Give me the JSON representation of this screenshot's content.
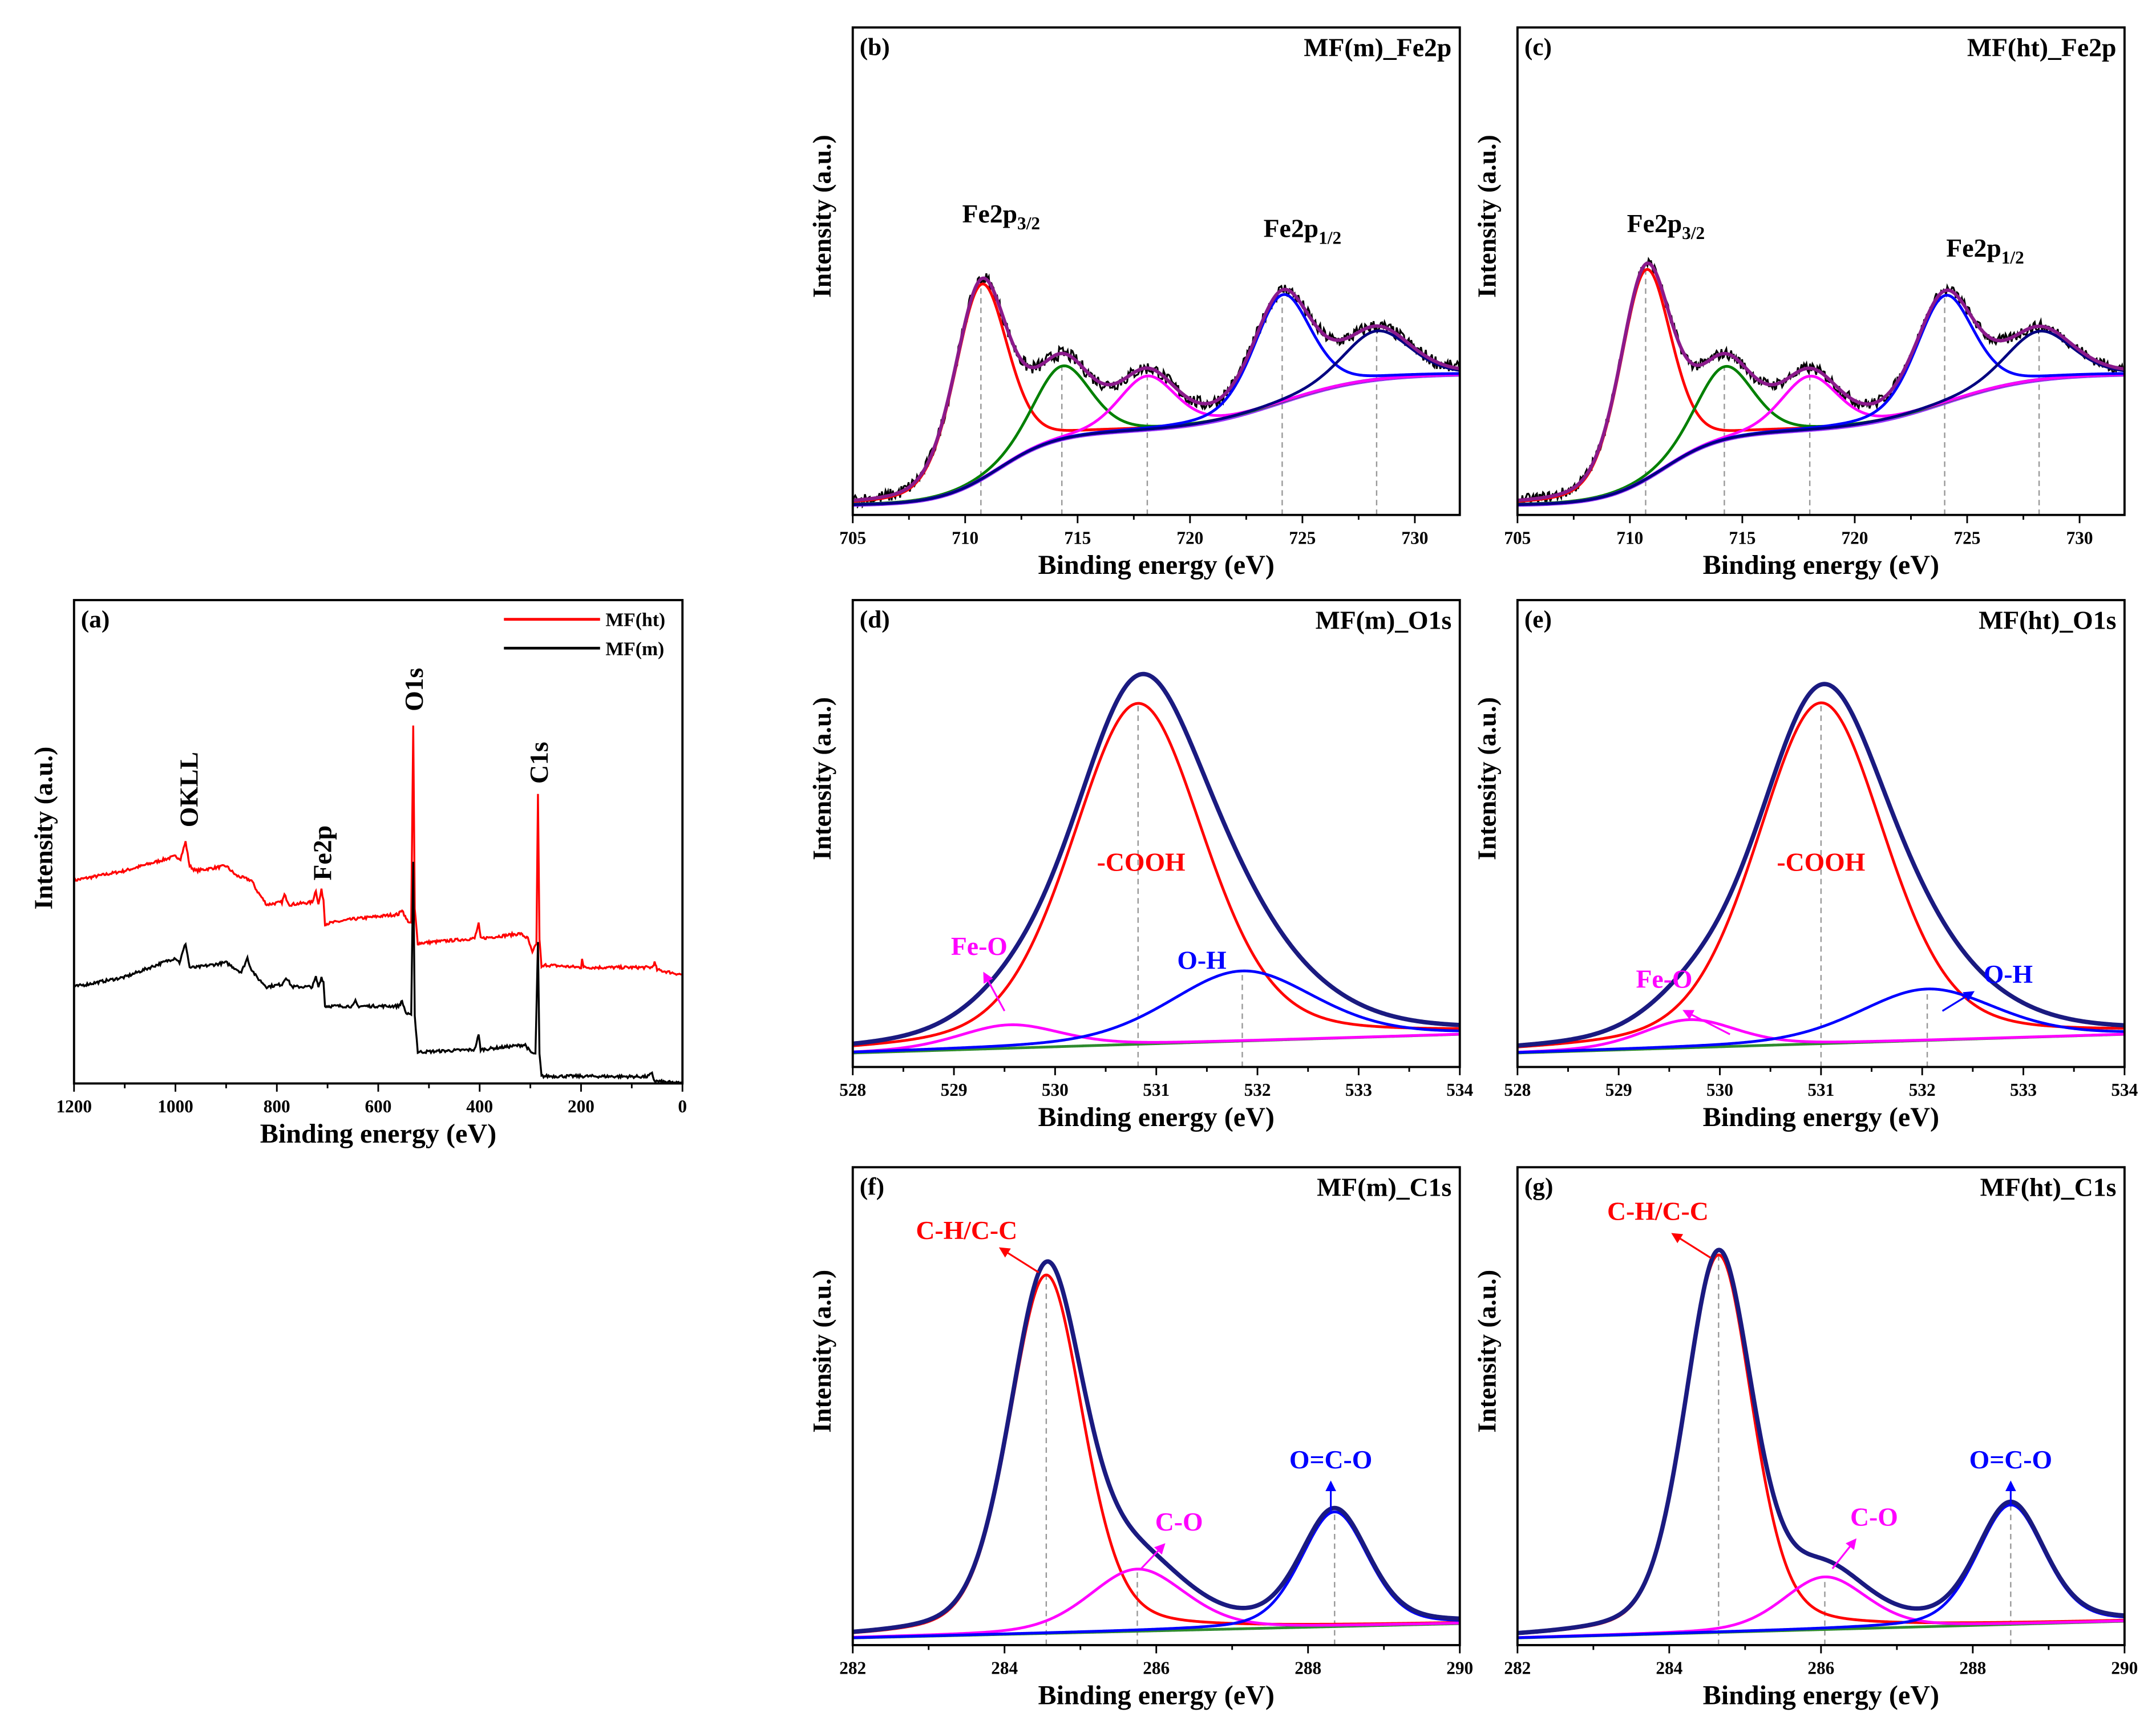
{
  "chart_data": [
    {
      "id": "a",
      "type": "line",
      "panel_label": "(a)",
      "title": "",
      "xlabel": "Binding energy (eV)",
      "ylabel": "Intensity (a.u.)",
      "xlim": [
        1200,
        0
      ],
      "ylim": [
        0,
        1
      ],
      "xticks": [
        1200,
        1000,
        800,
        600,
        400,
        200,
        0
      ],
      "xminor": 100,
      "legend": {
        "placement": "top-right",
        "entries": [
          {
            "name": "MF(ht)",
            "color": "#ff0000"
          },
          {
            "name": "MF(m)",
            "color": "#000000"
          }
        ]
      },
      "series": [
        {
          "name": "MF(ht)",
          "color": "#ff0000",
          "points": [
            [
              1200,
              0.42
            ],
            [
              1100,
              0.44
            ],
            [
              1000,
              0.47
            ],
            [
              990,
              0.465
            ],
            [
              980,
              0.5
            ],
            [
              972,
              0.45
            ],
            [
              960,
              0.44
            ],
            [
              900,
              0.45
            ],
            [
              880,
              0.43
            ],
            [
              850,
              0.42
            ],
            [
              840,
              0.4
            ],
            [
              820,
              0.37
            ],
            [
              790,
              0.375
            ],
            [
              785,
              0.39
            ],
            [
              775,
              0.37
            ],
            [
              730,
              0.375
            ],
            [
              723,
              0.4
            ],
            [
              718,
              0.37
            ],
            [
              712,
              0.4
            ],
            [
              708,
              0.38
            ],
            [
              705,
              0.33
            ],
            [
              650,
              0.34
            ],
            [
              560,
              0.35
            ],
            [
              553,
              0.36
            ],
            [
              545,
              0.34
            ],
            [
              535,
              0.33
            ],
            [
              531,
              0.74
            ],
            [
              528,
              0.36
            ],
            [
              522,
              0.29
            ],
            [
              410,
              0.3
            ],
            [
              402,
              0.33
            ],
            [
              398,
              0.3
            ],
            [
              320,
              0.31
            ],
            [
              305,
              0.3
            ],
            [
              296,
              0.27
            ],
            [
              288,
              0.29
            ],
            [
              285,
              0.6
            ],
            [
              282,
              0.3
            ],
            [
              278,
              0.24
            ],
            [
              270,
              0.245
            ],
            [
              200,
              0.24
            ],
            [
              198,
              0.26
            ],
            [
              195,
              0.24
            ],
            [
              60,
              0.24
            ],
            [
              55,
              0.25
            ],
            [
              50,
              0.235
            ],
            [
              0,
              0.225
            ]
          ]
        },
        {
          "name": "MF(m)",
          "color": "#000000",
          "points": [
            [
              1200,
              0.2
            ],
            [
              1100,
              0.22
            ],
            [
              1000,
              0.26
            ],
            [
              992,
              0.25
            ],
            [
              980,
              0.29
            ],
            [
              972,
              0.24
            ],
            [
              960,
              0.24
            ],
            [
              900,
              0.25
            ],
            [
              870,
              0.23
            ],
            [
              858,
              0.26
            ],
            [
              852,
              0.24
            ],
            [
              840,
              0.22
            ],
            [
              820,
              0.2
            ],
            [
              790,
              0.205
            ],
            [
              782,
              0.22
            ],
            [
              770,
              0.2
            ],
            [
              730,
              0.2
            ],
            [
              723,
              0.22
            ],
            [
              718,
              0.2
            ],
            [
              712,
              0.22
            ],
            [
              708,
              0.21
            ],
            [
              705,
              0.16
            ],
            [
              650,
              0.16
            ],
            [
              645,
              0.17
            ],
            [
              640,
              0.16
            ],
            [
              560,
              0.16
            ],
            [
              553,
              0.17
            ],
            [
              545,
              0.145
            ],
            [
              535,
              0.14
            ],
            [
              531,
              0.46
            ],
            [
              528,
              0.14
            ],
            [
              522,
              0.065
            ],
            [
              410,
              0.07
            ],
            [
              402,
              0.1
            ],
            [
              398,
              0.07
            ],
            [
              310,
              0.08
            ],
            [
              300,
              0.065
            ],
            [
              290,
              0.06
            ],
            [
              285,
              0.29
            ],
            [
              282,
              0.06
            ],
            [
              278,
              0.015
            ],
            [
              200,
              0.015
            ],
            [
              70,
              0.014
            ],
            [
              60,
              0.02
            ],
            [
              55,
              0.005
            ],
            [
              0,
              0.0
            ]
          ]
        }
      ],
      "annotations": [
        {
          "text": "OKLL",
          "x": 975,
          "y": 0.53,
          "rotate": true,
          "color": "#000000"
        },
        {
          "text": "Fe2p",
          "x": 712,
          "y": 0.42,
          "rotate": true,
          "color": "#000000"
        },
        {
          "text": "O1s",
          "x": 531,
          "y": 0.77,
          "rotate": true,
          "color": "#000000"
        },
        {
          "text": "C1s",
          "x": 285,
          "y": 0.62,
          "rotate": true,
          "color": "#000000"
        }
      ]
    },
    {
      "id": "b",
      "type": "line",
      "panel_label": "(b)",
      "title": "MF(m)_Fe2p",
      "xlabel": "Binding energy (eV)",
      "ylabel": "Intensity (a.u.)",
      "xlim": [
        705,
        732
      ],
      "ylim": [
        0,
        1
      ],
      "xticks": [
        705,
        710,
        715,
        720,
        725,
        730
      ],
      "xminor": 2.5,
      "raw": {
        "color": "#000000",
        "noise": 0.014
      },
      "envelope_color": "#8b1a8b",
      "background": {
        "color": "#9933ff",
        "base": 0.02,
        "steps": [
          [
            711.5,
            1.3,
            0.15
          ],
          [
            724,
            2,
            0.12
          ]
        ]
      },
      "components": [
        {
          "center": 710.7,
          "height": 0.4,
          "fwhm": 2.8,
          "color": "#ff0000"
        },
        {
          "center": 714.3,
          "height": 0.15,
          "fwhm": 3.0,
          "color": "#008000"
        },
        {
          "center": 718.1,
          "height": 0.11,
          "fwhm": 3.0,
          "color": "#ff00ff"
        },
        {
          "center": 724.1,
          "height": 0.22,
          "fwhm": 3.0,
          "color": "#0000ff"
        },
        {
          "center": 728.3,
          "height": 0.1,
          "fwhm": 3.5,
          "color": "#000080"
        }
      ],
      "annotations": [
        {
          "text": "Fe2p",
          "sub": "3/2",
          "x": 711.6,
          "y": 0.6,
          "color": "#000000"
        },
        {
          "text": "Fe2p",
          "sub": "1/2",
          "x": 725.0,
          "y": 0.57,
          "color": "#000000"
        }
      ]
    },
    {
      "id": "c",
      "type": "line",
      "panel_label": "(c)",
      "title": "MF(ht)_Fe2p",
      "xlabel": "Binding energy (eV)",
      "ylabel": "Intensity (a.u.)",
      "xlim": [
        705,
        732
      ],
      "ylim": [
        0,
        1
      ],
      "xticks": [
        705,
        710,
        715,
        720,
        725,
        730
      ],
      "xminor": 2.5,
      "raw": {
        "color": "#000000",
        "noise": 0.012
      },
      "envelope_color": "#8b1a8b",
      "background": {
        "color": "#9933ff",
        "base": 0.02,
        "steps": [
          [
            711.5,
            1.3,
            0.15
          ],
          [
            724,
            2,
            0.12
          ]
        ]
      },
      "components": [
        {
          "center": 710.7,
          "height": 0.43,
          "fwhm": 2.7,
          "color": "#ff0000"
        },
        {
          "center": 714.2,
          "height": 0.15,
          "fwhm": 3.0,
          "color": "#008000"
        },
        {
          "center": 718.0,
          "height": 0.11,
          "fwhm": 3.0,
          "color": "#ff00ff"
        },
        {
          "center": 724.0,
          "height": 0.22,
          "fwhm": 3.0,
          "color": "#0000ff"
        },
        {
          "center": 728.2,
          "height": 0.1,
          "fwhm": 3.5,
          "color": "#000080"
        }
      ],
      "annotations": [
        {
          "text": "Fe2p",
          "sub": "3/2",
          "x": 711.6,
          "y": 0.58,
          "color": "#000000"
        },
        {
          "text": "Fe2p",
          "sub": "1/2",
          "x": 725.8,
          "y": 0.53,
          "color": "#000000"
        }
      ]
    },
    {
      "id": "d",
      "type": "line",
      "panel_label": "(d)",
      "title": "MF(m)_O1s",
      "xlabel": "Binding energy (eV)",
      "ylabel": "Intensity (a.u.)",
      "xlim": [
        528,
        534
      ],
      "ylim": [
        0,
        1
      ],
      "xticks": [
        528,
        529,
        530,
        531,
        532,
        533,
        534
      ],
      "xminor": 0.5,
      "envelope_color": "#1a1a80",
      "background": {
        "color": "#2e8b2e",
        "base": 0.03,
        "linear": 0.04
      },
      "components": [
        {
          "center": 529.55,
          "height": 0.05,
          "fwhm": 1.2,
          "color": "#ff00ff",
          "label_line": false
        },
        {
          "center": 530.82,
          "height": 0.73,
          "fwhm": 1.55,
          "color": "#ff0000",
          "label_line": true
        },
        {
          "center": 531.85,
          "height": 0.15,
          "fwhm": 1.7,
          "color": "#0000ff",
          "label_line": true
        }
      ],
      "annotations": [
        {
          "text": "-COOH",
          "x": 530.85,
          "y": 0.42,
          "color": "#ff0000"
        },
        {
          "text": "Fe-O",
          "x": 529.25,
          "y": 0.24,
          "color": "#ff00ff",
          "arrow": [
            [
              529.5,
              0.12
            ],
            [
              529.3,
              0.2
            ]
          ]
        },
        {
          "text": "O-H",
          "x": 531.45,
          "y": 0.21,
          "color": "#0000ff"
        }
      ]
    },
    {
      "id": "e",
      "type": "line",
      "panel_label": "(e)",
      "title": "MF(ht)_O1s",
      "xlabel": "Binding energy (eV)",
      "ylabel": "Intensity (a.u.)",
      "xlim": [
        528,
        534
      ],
      "ylim": [
        0,
        1
      ],
      "xticks": [
        528,
        529,
        530,
        531,
        532,
        533,
        534
      ],
      "xminor": 0.5,
      "envelope_color": "#1a1a80",
      "background": {
        "color": "#2e8b2e",
        "base": 0.03,
        "linear": 0.04
      },
      "components": [
        {
          "center": 529.7,
          "height": 0.06,
          "fwhm": 1.1,
          "color": "#ff00ff",
          "label_line": false
        },
        {
          "center": 531.0,
          "height": 0.73,
          "fwhm": 1.5,
          "color": "#ff0000",
          "label_line": true
        },
        {
          "center": 532.05,
          "height": 0.11,
          "fwhm": 1.6,
          "color": "#0000ff",
          "label_line": true
        }
      ],
      "annotations": [
        {
          "text": "-COOH",
          "x": 531.0,
          "y": 0.42,
          "color": "#ff0000"
        },
        {
          "text": "Fe-O",
          "x": 529.45,
          "y": 0.17,
          "color": "#ff00ff",
          "arrow": [
            [
              530.1,
              0.07
            ],
            [
              529.65,
              0.12
            ]
          ]
        },
        {
          "text": "O-H",
          "x": 532.85,
          "y": 0.18,
          "color": "#0000ff",
          "arrow": [
            [
              532.2,
              0.12
            ],
            [
              532.5,
              0.16
            ]
          ]
        }
      ]
    },
    {
      "id": "f",
      "type": "line",
      "panel_label": "(f)",
      "title": "MF(m)_C1s",
      "xlabel": "Binding energy (eV)",
      "ylabel": "Intensity (a.u.)",
      "xlim": [
        282,
        290
      ],
      "ylim": [
        0,
        1
      ],
      "xticks": [
        282,
        284,
        286,
        288,
        290
      ],
      "xminor": 1,
      "envelope_color": "#1a1a80",
      "background": {
        "color": "#2e8b2e",
        "base": 0.015,
        "linear": 0.03
      },
      "components": [
        {
          "center": 284.55,
          "height": 0.75,
          "fwhm": 1.15,
          "color": "#ff0000",
          "label_line": true
        },
        {
          "center": 285.75,
          "height": 0.13,
          "fwhm": 1.5,
          "color": "#ff00ff",
          "label_line": true
        },
        {
          "center": 288.35,
          "height": 0.24,
          "fwhm": 1.05,
          "color": "#0000ff",
          "label_line": true
        }
      ],
      "annotations": [
        {
          "text": "C-H/C-C",
          "x": 283.5,
          "y": 0.85,
          "color": "#ff0000",
          "arrow": [
            [
              284.45,
              0.78
            ],
            [
              283.95,
              0.83
            ]
          ]
        },
        {
          "text": "C-O",
          "x": 286.3,
          "y": 0.24,
          "color": "#ff00ff",
          "arrow": [
            [
              285.8,
              0.16
            ],
            [
              286.1,
              0.21
            ]
          ]
        },
        {
          "text": "O=C-O",
          "x": 288.3,
          "y": 0.37,
          "color": "#0000ff",
          "arrow": [
            [
              288.3,
              0.28
            ],
            [
              288.3,
              0.34
            ]
          ]
        }
      ]
    },
    {
      "id": "g",
      "type": "line",
      "panel_label": "(g)",
      "title": "MF(ht)_C1s",
      "xlabel": "Binding energy (eV)",
      "ylabel": "Intensity (a.u.)",
      "xlim": [
        282,
        290
      ],
      "ylim": [
        0,
        1
      ],
      "xticks": [
        282,
        284,
        286,
        288,
        290
      ],
      "xminor": 1,
      "envelope_color": "#1a1a80",
      "background": {
        "color": "#2e8b2e",
        "base": 0.015,
        "linear": 0.035
      },
      "components": [
        {
          "center": 284.65,
          "height": 0.79,
          "fwhm": 1.05,
          "color": "#ff0000",
          "label_line": true
        },
        {
          "center": 286.05,
          "height": 0.11,
          "fwhm": 1.3,
          "color": "#ff00ff",
          "label_line": true
        },
        {
          "center": 288.5,
          "height": 0.25,
          "fwhm": 1.05,
          "color": "#0000ff",
          "label_line": true
        }
      ],
      "annotations": [
        {
          "text": "C-H/C-C",
          "x": 283.85,
          "y": 0.89,
          "color": "#ff0000",
          "arrow": [
            [
              284.55,
              0.81
            ],
            [
              284.05,
              0.86
            ]
          ]
        },
        {
          "text": "C-O",
          "x": 286.7,
          "y": 0.25,
          "color": "#ff00ff",
          "arrow": [
            [
              286.15,
              0.16
            ],
            [
              286.45,
              0.22
            ]
          ]
        },
        {
          "text": "O=C-O",
          "x": 288.5,
          "y": 0.37,
          "color": "#0000ff",
          "arrow": [
            [
              288.5,
              0.29
            ],
            [
              288.5,
              0.34
            ]
          ]
        }
      ]
    }
  ]
}
